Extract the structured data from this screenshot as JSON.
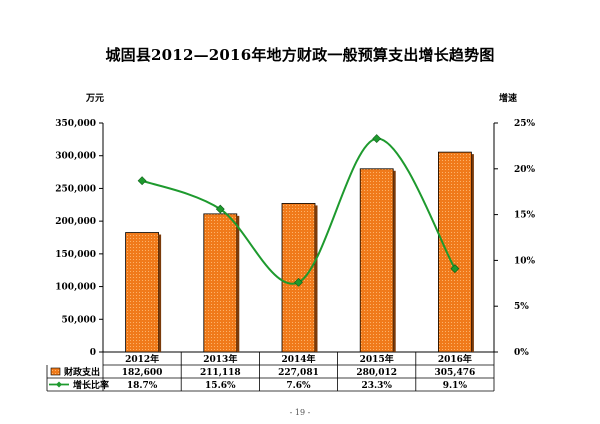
{
  "title": "城固县2012—2016年地方财政一般预算支出增长趋势图",
  "page_number": "- 19 -",
  "chart_data": {
    "type": "bar",
    "title": "城固县2012—2016年地方财政一般预算支出增长趋势图",
    "categories": [
      "2012年",
      "2013年",
      "2014年",
      "2015年",
      "2016年"
    ],
    "y_left": {
      "unit": "万元",
      "range": [
        0,
        350000
      ],
      "ticks": [
        "0",
        "50,000",
        "100,000",
        "150,000",
        "200,000",
        "250,000",
        "300,000",
        "350,000"
      ]
    },
    "y_right": {
      "unit": "增速",
      "range": [
        0,
        25
      ],
      "ticks": [
        "0%",
        "5%",
        "10%",
        "15%",
        "20%",
        "25%"
      ]
    },
    "series": [
      {
        "name": "财政支出",
        "kind": "bar",
        "axis": "left",
        "color": "#f07a1a",
        "values": [
          182600,
          211118,
          227081,
          280012,
          305476
        ],
        "labels": [
          "182,600",
          "211,118",
          "227,081",
          "280,012",
          "305,476"
        ]
      },
      {
        "name": "增长比率",
        "kind": "line",
        "axis": "right",
        "color": "#1e9a2e",
        "values": [
          18.7,
          15.6,
          7.6,
          23.3,
          9.1
        ],
        "labels": [
          "18.7%",
          "15.6%",
          "7.6%",
          "23.3%",
          "9.1%"
        ]
      }
    ],
    "grid": false,
    "legend": "table-below"
  }
}
